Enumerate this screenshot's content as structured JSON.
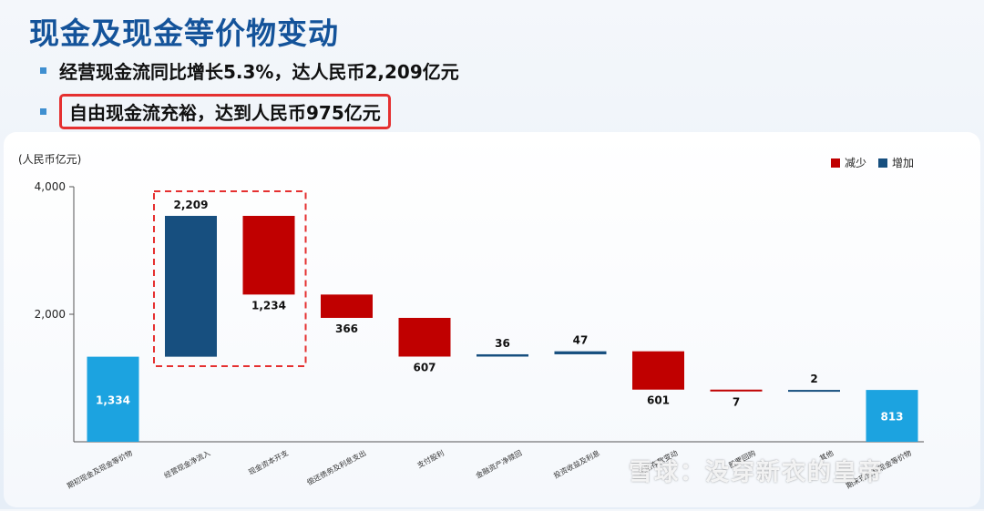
{
  "header": {
    "title": "现金及现金等价物变动",
    "bullets": [
      "经营现金流同比增长5.3%，达人民币2,209亿元",
      "自由现金流充裕，达到人民币975亿元"
    ]
  },
  "watermark": "雪球：没穿新衣的皇帝",
  "colors": {
    "decrease": "#c00000",
    "increase": "#174f7f",
    "total": "#1ca3e0",
    "highlight_box": "#e53030"
  },
  "chart_data": {
    "type": "bar",
    "subtype": "waterfall",
    "unit_label": "(人民币亿元)",
    "ylim": [
      0,
      4000
    ],
    "y_ticks": [
      "2,000",
      "4,000"
    ],
    "legend": [
      {
        "label": "减少",
        "color": "#c00000"
      },
      {
        "label": "增加",
        "color": "#174f7f"
      }
    ],
    "legend_position": "top-right",
    "categories": [
      "期初现金及现金等价物",
      "经营现金净流入",
      "现金资本开支",
      "偿还债务及利息支出",
      "支付股利",
      "金融资产净赎回",
      "投资收益及利息",
      "定期存款变动",
      "股票回购",
      "其他",
      "期末现金及现金等价物"
    ],
    "bars": [
      {
        "kind": "total",
        "value": 1334,
        "label": "1,334"
      },
      {
        "kind": "increase",
        "value": 2209,
        "label": "2,209"
      },
      {
        "kind": "decrease",
        "value": 1234,
        "label": "1,234"
      },
      {
        "kind": "decrease",
        "value": 366,
        "label": "366"
      },
      {
        "kind": "decrease",
        "value": 607,
        "label": "607"
      },
      {
        "kind": "increase",
        "value": 36,
        "label": "36"
      },
      {
        "kind": "increase",
        "value": 47,
        "label": "47"
      },
      {
        "kind": "decrease",
        "value": 601,
        "label": "601"
      },
      {
        "kind": "decrease",
        "value": 7,
        "label": "7"
      },
      {
        "kind": "increase",
        "value": 2,
        "label": "2"
      },
      {
        "kind": "total",
        "value": 813,
        "label": "813"
      }
    ],
    "highlighted_categories": [
      "经营现金净流入",
      "现金资本开支"
    ],
    "grid": false
  }
}
